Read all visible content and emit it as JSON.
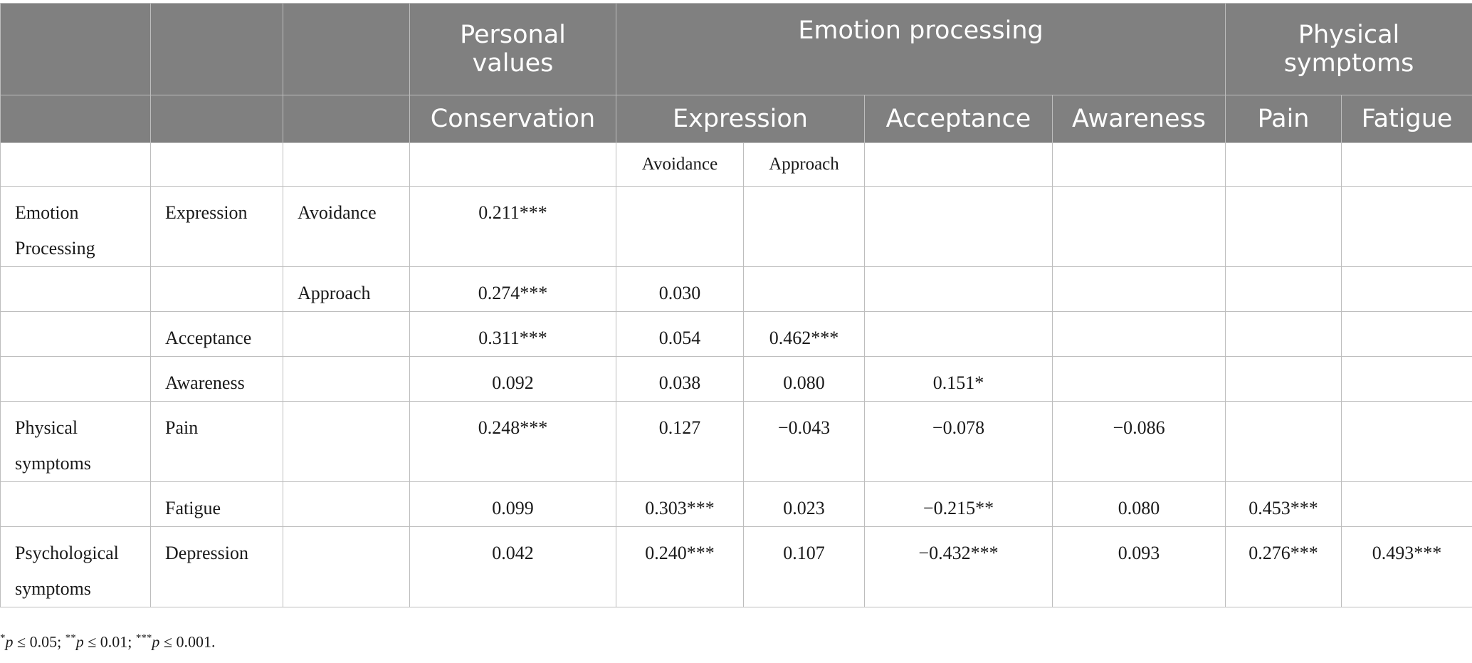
{
  "header": {
    "personal_values": "Personal values",
    "emotion_processing": "Emotion processing",
    "physical_symptoms": "Physical symptoms",
    "conservation": "Conservation",
    "expression": "Expression",
    "acceptance": "Acceptance",
    "awareness": "Awareness",
    "pain": "Pain",
    "fatigue": "Fatigue"
  },
  "subheader": {
    "avoidance": "Avoidance",
    "approach": "Approach"
  },
  "rows": [
    {
      "group": "Emotion Processing",
      "scale": "Expression",
      "sub": "Avoidance",
      "values": [
        "0.211***",
        "",
        "",
        "",
        "",
        "",
        ""
      ]
    },
    {
      "group": "",
      "scale": "",
      "sub": "Approach",
      "values": [
        "0.274***",
        "0.030",
        "",
        "",
        "",
        "",
        ""
      ]
    },
    {
      "group": "",
      "scale": "Acceptance",
      "sub": "",
      "values": [
        "0.311***",
        "0.054",
        "0.462***",
        "",
        "",
        "",
        ""
      ]
    },
    {
      "group": "",
      "scale": "Awareness",
      "sub": "",
      "values": [
        "0.092",
        "0.038",
        "0.080",
        "0.151*",
        "",
        "",
        ""
      ]
    },
    {
      "group": "Physical symptoms",
      "scale": "Pain",
      "sub": "",
      "values": [
        "0.248***",
        "0.127",
        "−0.043",
        "−0.078",
        "−0.086",
        "",
        ""
      ]
    },
    {
      "group": "",
      "scale": "Fatigue",
      "sub": "",
      "values": [
        "0.099",
        "0.303***",
        "0.023",
        "−0.215**",
        "0.080",
        "0.453***",
        ""
      ]
    },
    {
      "group": "Psychological symptoms",
      "scale": "Depression",
      "sub": "",
      "values": [
        "0.042",
        "0.240***",
        "0.107",
        "−0.432***",
        "0.093",
        "0.276***",
        "0.493***"
      ]
    }
  ],
  "footnote": {
    "s1": "*",
    "p1": "p",
    "t1": " ≤ 0.05; ",
    "s2": "**",
    "p2": "p",
    "t2": " ≤ 0.01; ",
    "s3": "***",
    "p3": "p",
    "t3": " ≤ 0.001."
  }
}
